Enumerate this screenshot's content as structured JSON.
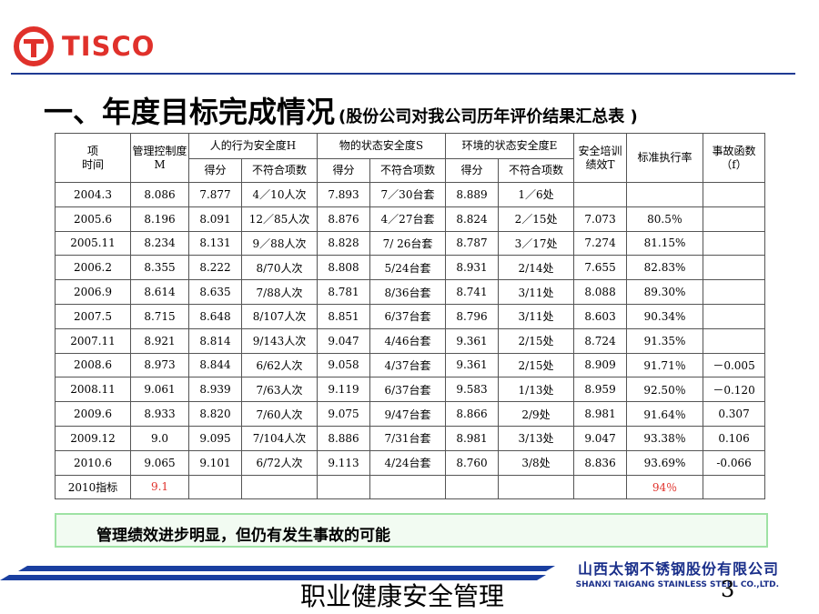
{
  "brand": {
    "logo_text": "TISCO",
    "logo_color": "#e0312b"
  },
  "title": {
    "main": "一、年度目标完成情况",
    "sub": "(股份公司对我公司历年评价结果汇总表 )"
  },
  "table": {
    "headers": {
      "corner_top": "项",
      "corner_bottom": "时间",
      "mgmt": "管理控制度M",
      "human": "人的行为安全度H",
      "object": "物的状态安全度S",
      "env": "环境的状态安全度E",
      "training": "安全培训绩效T",
      "standard": "标准执行率",
      "accident": "事故函数（f）",
      "score": "得分",
      "nonconform": "不符合项数"
    },
    "rows": [
      [
        "2004.3",
        "8.086",
        "7.877",
        "4／10人次",
        "7.893",
        "7／30台套",
        "8.889",
        "1／6处",
        "",
        "",
        ""
      ],
      [
        "2005.6",
        "8.196",
        "8.091",
        "12／85人次",
        "8.876",
        "4／27台套",
        "8.824",
        "2／15处",
        "7.073",
        "80.5％",
        ""
      ],
      [
        "2005.11",
        "8.234",
        "8.131",
        "9／88人次",
        "8.828",
        "7/ 26台套",
        "8.787",
        "3／17处",
        "7.274",
        "81.15%",
        ""
      ],
      [
        "2006.2",
        "8.355",
        "8.222",
        "8/70人次",
        "8.808",
        "5/24台套",
        "8.931",
        "2/14处",
        "7.655",
        "82.83%",
        ""
      ],
      [
        "2006.9",
        "8.614",
        "8.635",
        "7/88人次",
        "8.781",
        "8/36台套",
        "8.741",
        "3/11处",
        "8.088",
        "89.30%",
        ""
      ],
      [
        "2007.5",
        "8.715",
        "8.648",
        "8/107人次",
        "8.851",
        "6/37台套",
        "8.796",
        "3/11处",
        "8.603",
        "90.34%",
        ""
      ],
      [
        "2007.11",
        "8.921",
        "8.814",
        "9/143人次",
        "9.047",
        "4/46台套",
        "9.361",
        "2/15处",
        "8.724",
        "91.35%",
        ""
      ],
      [
        "2008.6",
        "8.973",
        "8.844",
        "6/62人次",
        "9.058",
        "4/37台套",
        "9.361",
        "2/15处",
        "8.909",
        "91.71％",
        "－0.005"
      ],
      [
        "2008.11",
        "9.061",
        "8.939",
        "7/63人次",
        "9.119",
        "6/37台套",
        "9.583",
        "1/13处",
        "8.959",
        "92.50％",
        "－0.120"
      ],
      [
        "2009.6",
        "8.933",
        "8.820",
        "7/60人次",
        "9.075",
        "9/47台套",
        "8.866",
        "2/9处",
        "8.981",
        "91.64％",
        "0.307"
      ],
      [
        "2009.12",
        "9.0",
        "9.095",
        "7/104人次",
        "8.886",
        "7/31台套",
        "8.981",
        "3/13处",
        "9.047",
        "93.38％",
        "0.106"
      ],
      [
        "2010.6",
        "9.065",
        "9.101",
        "6/72人次",
        "9.113",
        "4/24台套",
        "8.760",
        "3/8处",
        "8.836",
        "93.69%",
        "-0.066"
      ],
      [
        "2010指标",
        "9.1",
        "",
        "",
        "",
        "",
        "",
        "",
        "",
        "94％",
        ""
      ]
    ],
    "highlight_color": "#e0312b"
  },
  "note": "管理绩效进步明显，但仍有发生事故的可能",
  "company": {
    "cn": "山西太钢不锈钢股份有限公司",
    "en": "SHANXI TAIGANG STAINLESS STEEL CO.,LTD."
  },
  "footer": {
    "text": "职业健康安全管理",
    "page": "3"
  },
  "colors": {
    "accent_blue": "#1f3a93",
    "note_border": "#9ee2a4"
  }
}
